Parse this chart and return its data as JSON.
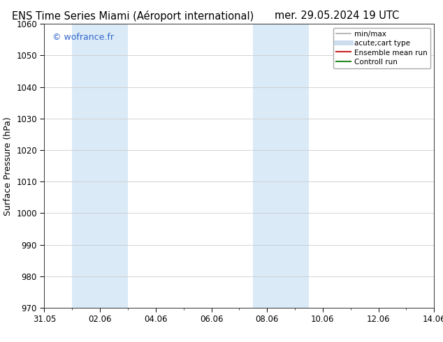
{
  "title_left": "ENS Time Series Miami (Aéroport international)",
  "title_right": "mer. 29.05.2024 19 UTC",
  "ylabel": "Surface Pressure (hPa)",
  "ylim": [
    970,
    1060
  ],
  "yticks": [
    970,
    980,
    990,
    1000,
    1010,
    1020,
    1030,
    1040,
    1050,
    1060
  ],
  "xtick_positions": [
    0,
    2,
    4,
    6,
    8,
    10,
    12,
    14
  ],
  "xtick_labels": [
    "31.05",
    "02.06",
    "04.06",
    "06.06",
    "08.06",
    "10.06",
    "12.06",
    "14.06"
  ],
  "xlim": [
    0,
    14
  ],
  "shaded_bands": [
    {
      "x_start": 1.0,
      "x_end": 3.0,
      "color": "#daeaf7"
    },
    {
      "x_start": 7.5,
      "x_end": 9.5,
      "color": "#daeaf7"
    }
  ],
  "watermark": "© wofrance.fr",
  "watermark_color": "#3366cc",
  "legend_items": [
    {
      "label": "min/max",
      "color": "#aaaaaa",
      "lw": 1.2,
      "linestyle": "-"
    },
    {
      "label": "acute;cart type",
      "color": "#ccddee",
      "lw": 5,
      "linestyle": "-"
    },
    {
      "label": "Ensemble mean run",
      "color": "#cc2222",
      "lw": 1.5,
      "linestyle": "-"
    },
    {
      "label": "Controll run",
      "color": "#228822",
      "lw": 1.5,
      "linestyle": "-"
    }
  ],
  "bg_color": "#ffffff",
  "grid_color": "#cccccc",
  "title_fontsize": 10.5,
  "label_fontsize": 9,
  "tick_fontsize": 8.5,
  "legend_fontsize": 7.5,
  "watermark_fontsize": 9
}
